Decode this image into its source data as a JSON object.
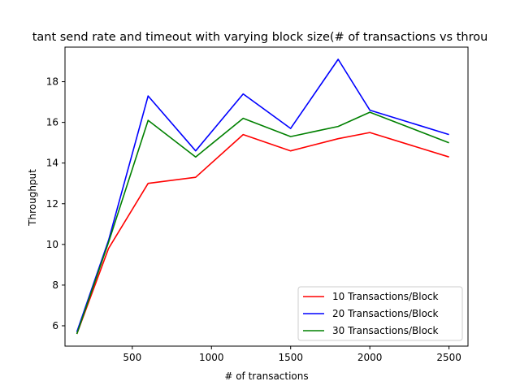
{
  "chart_data": {
    "type": "line",
    "title": "tant send rate and timeout with varying block size(# of transactions vs throu",
    "xlabel": "# of transactions",
    "ylabel": "Throughput",
    "xlim": [
      75,
      2620
    ],
    "ylim": [
      5.0,
      19.7
    ],
    "xticks": [
      500,
      1000,
      1500,
      2000,
      2500
    ],
    "yticks": [
      6,
      8,
      10,
      12,
      14,
      16,
      18
    ],
    "grid": false,
    "legend_position": "lower-right",
    "x": [
      150,
      350,
      600,
      900,
      1200,
      1500,
      1800,
      2000,
      2500
    ],
    "series": [
      {
        "name": "10 Transactions/Block",
        "color": "#ff0000",
        "values": [
          5.6,
          9.8,
          13.0,
          13.3,
          15.4,
          14.6,
          15.2,
          15.5,
          14.3
        ]
      },
      {
        "name": "20 Transactions/Block",
        "color": "#0000ff",
        "values": [
          5.7,
          10.2,
          17.3,
          14.6,
          17.4,
          15.7,
          19.1,
          16.6,
          15.4
        ]
      },
      {
        "name": "30 Transactions/Block",
        "color": "#008000",
        "values": [
          5.6,
          10.1,
          16.1,
          14.3,
          16.2,
          15.3,
          15.8,
          16.5,
          15.0
        ]
      }
    ]
  }
}
